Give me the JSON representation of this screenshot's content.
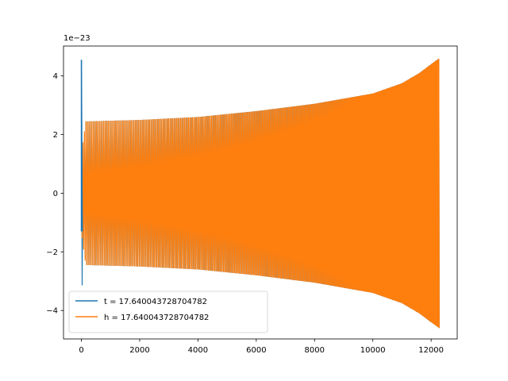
{
  "chart_data": {
    "type": "line",
    "title": "",
    "xlabel": "",
    "ylabel": "",
    "xlim": [
      -614,
      12895
    ],
    "ylim": [
      -4.97,
      5.02
    ],
    "y_offset_label": "1e−23",
    "x_ticks": [
      0,
      2000,
      4000,
      6000,
      8000,
      10000,
      12000
    ],
    "x_tick_labels": [
      "0",
      "2000",
      "4000",
      "6000",
      "8000",
      "10000",
      "12000"
    ],
    "y_ticks": [
      -4,
      -2,
      0,
      2,
      4
    ],
    "y_tick_labels": [
      "−4",
      "−2",
      "0",
      "2",
      "4"
    ],
    "grid": false,
    "legend_position": "lower-left",
    "series": [
      {
        "name": "t = 17.640043728704782",
        "color": "#1f77b4",
        "x_range": [
          0,
          12280
        ],
        "envelope": {
          "points": [
            {
              "x": 0,
              "amp": 4.55
            },
            {
              "x": 60,
              "amp": 1.3
            },
            {
              "x": 150,
              "amp": 2.45
            },
            {
              "x": 2000,
              "amp": 2.5
            },
            {
              "x": 4000,
              "amp": 2.6
            },
            {
              "x": 6000,
              "amp": 2.8
            },
            {
              "x": 8000,
              "amp": 3.05
            },
            {
              "x": 10000,
              "amp": 3.4
            },
            {
              "x": 11000,
              "amp": 3.75
            },
            {
              "x": 11600,
              "amp": 4.1
            },
            {
              "x": 12000,
              "amp": 4.4
            },
            {
              "x": 12280,
              "amp": 4.6
            }
          ]
        }
      },
      {
        "name": "h = 17.640043728704782",
        "color": "#ff7f0e",
        "x_range": [
          0,
          12280
        ],
        "envelope": {
          "points": [
            {
              "x": 0,
              "amp": 1.35
            },
            {
              "x": 150,
              "amp": 2.45
            },
            {
              "x": 2000,
              "amp": 2.5
            },
            {
              "x": 4000,
              "amp": 2.6
            },
            {
              "x": 6000,
              "amp": 2.8
            },
            {
              "x": 8000,
              "amp": 3.05
            },
            {
              "x": 10000,
              "amp": 3.4
            },
            {
              "x": 11000,
              "amp": 3.75
            },
            {
              "x": 11600,
              "amp": 4.1
            },
            {
              "x": 12000,
              "amp": 4.4
            },
            {
              "x": 12280,
              "amp": 4.6
            }
          ]
        }
      }
    ]
  }
}
